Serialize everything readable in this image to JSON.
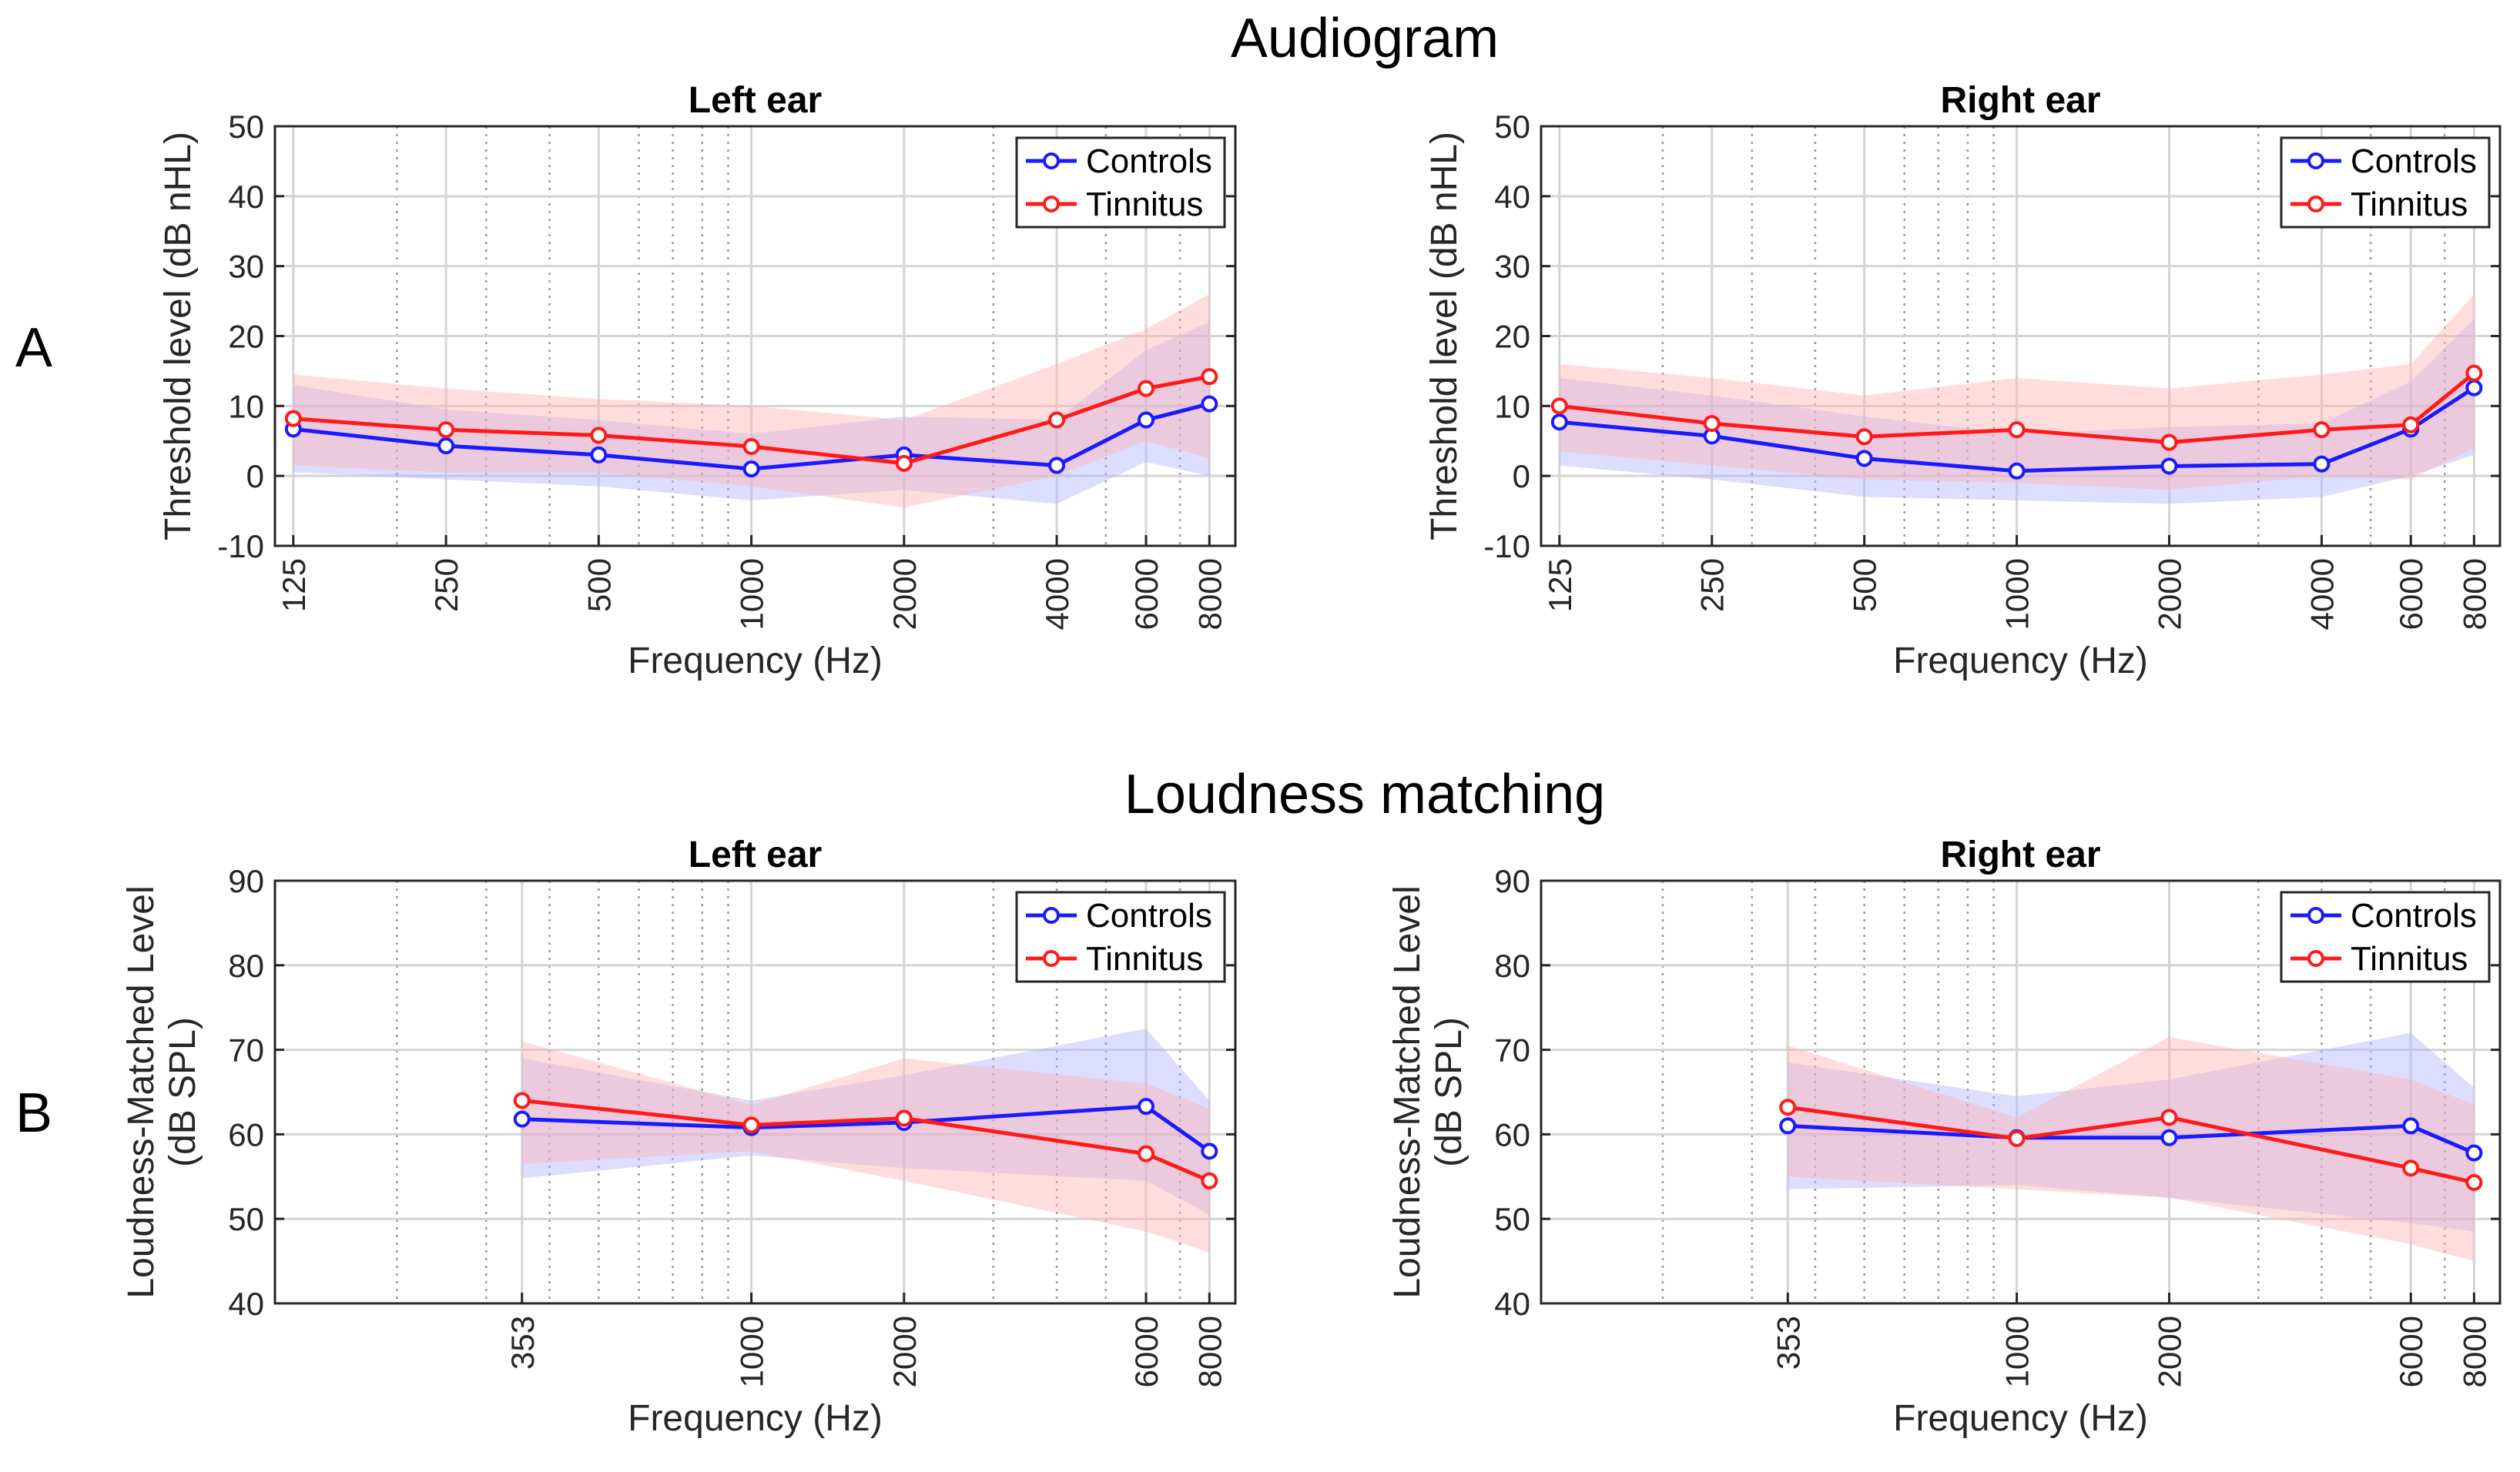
{
  "figure": {
    "row_a": {
      "title": "Audiogram",
      "letter": "A"
    },
    "row_b": {
      "title": "Loudness matching",
      "letter": "B"
    }
  },
  "colors": {
    "controls": "#1a1aff",
    "tinnitus": "#ff1a1a",
    "controls_band": "#b3b3ff",
    "tinnitus_band": "#ffb3b3"
  },
  "chart_data": [
    {
      "id": "audiogram-left",
      "type": "line",
      "title": "Left ear",
      "xlabel": "Frequency (Hz)",
      "ylabel": [
        "Threshold level (dB nHL)"
      ],
      "xscale": "log",
      "xlim": [
        115,
        9000
      ],
      "ylim": [
        -10,
        50
      ],
      "yticks": [
        -10,
        0,
        10,
        20,
        30,
        40,
        50
      ],
      "xticks": [
        125,
        250,
        500,
        1000,
        2000,
        4000,
        6000,
        8000
      ],
      "xtick_labels": [
        "125",
        "250",
        "500",
        "1000",
        "2000",
        "4000",
        "6000",
        "8000"
      ],
      "minor_grid": [
        200,
        300,
        400,
        600,
        700,
        800,
        900,
        3000,
        5000,
        7000
      ],
      "legend": [
        "Controls",
        "Tinnitus"
      ],
      "legend_position": "top-right",
      "series": [
        {
          "name": "Controls",
          "x": [
            125,
            250,
            500,
            1000,
            2000,
            4000,
            6000,
            8000
          ],
          "y": [
            6.7,
            4.3,
            3.0,
            1.0,
            3.0,
            1.5,
            8.0,
            10.3
          ],
          "band_low": [
            0.5,
            -0.5,
            -1.5,
            -3.5,
            -2.0,
            -4.0,
            2.0,
            0.0
          ],
          "band_high": [
            13.0,
            9.5,
            8.0,
            6.0,
            8.5,
            8.0,
            18.0,
            22.0
          ]
        },
        {
          "name": "Tinnitus",
          "x": [
            125,
            250,
            500,
            1000,
            2000,
            4000,
            6000,
            8000
          ],
          "y": [
            8.2,
            6.6,
            5.8,
            4.2,
            1.8,
            8.0,
            12.5,
            14.2
          ],
          "band_low": [
            1.5,
            0.5,
            0.5,
            -1.5,
            -4.5,
            0.0,
            5.0,
            2.5
          ],
          "band_high": [
            14.5,
            12.5,
            11.0,
            10.0,
            8.0,
            16.0,
            21.0,
            26.0
          ]
        }
      ]
    },
    {
      "id": "audiogram-right",
      "type": "line",
      "title": "Right ear",
      "xlabel": "Frequency (Hz)",
      "ylabel": [
        "Threshold level (dB nHL)"
      ],
      "xscale": "log",
      "xlim": [
        115,
        9000
      ],
      "ylim": [
        -10,
        50
      ],
      "yticks": [
        -10,
        0,
        10,
        20,
        30,
        40,
        50
      ],
      "xticks": [
        125,
        250,
        500,
        1000,
        2000,
        4000,
        6000,
        8000
      ],
      "xtick_labels": [
        "125",
        "250",
        "500",
        "1000",
        "2000",
        "4000",
        "6000",
        "8000"
      ],
      "minor_grid": [
        200,
        300,
        400,
        600,
        700,
        800,
        900,
        3000,
        5000,
        7000
      ],
      "legend": [
        "Controls",
        "Tinnitus"
      ],
      "legend_position": "top-right",
      "series": [
        {
          "name": "Controls",
          "x": [
            125,
            250,
            500,
            1000,
            2000,
            4000,
            6000,
            8000
          ],
          "y": [
            7.7,
            5.7,
            2.5,
            0.7,
            1.4,
            1.7,
            6.7,
            12.6
          ],
          "band_low": [
            1.5,
            -0.5,
            -3.0,
            -3.5,
            -4.0,
            -3.0,
            0.0,
            3.0
          ],
          "band_high": [
            14.0,
            11.5,
            8.5,
            6.0,
            7.0,
            7.5,
            13.5,
            22.5
          ]
        },
        {
          "name": "Tinnitus",
          "x": [
            125,
            250,
            500,
            1000,
            2000,
            4000,
            6000,
            8000
          ],
          "y": [
            10.0,
            7.5,
            5.6,
            6.6,
            4.8,
            6.6,
            7.3,
            14.7
          ],
          "band_low": [
            3.5,
            1.5,
            -0.5,
            -1.0,
            -2.0,
            0.0,
            -0.5,
            4.0
          ],
          "band_high": [
            16.0,
            14.0,
            11.5,
            14.0,
            12.5,
            14.5,
            16.0,
            26.0
          ]
        }
      ]
    },
    {
      "id": "loudness-left",
      "type": "line",
      "title": "Left ear",
      "xlabel": "Frequency (Hz)",
      "ylabel": [
        "Loudness-Matched Level",
        "(dB SPL)"
      ],
      "xscale": "log",
      "xlim": [
        115,
        9000
      ],
      "ylim": [
        40,
        90
      ],
      "yticks": [
        40,
        50,
        60,
        70,
        80,
        90
      ],
      "xticks": [
        353,
        1000,
        2000,
        6000,
        8000
      ],
      "xtick_labels": [
        "353",
        "1000",
        "2000",
        "6000",
        "8000"
      ],
      "minor_grid": [
        200,
        300,
        400,
        500,
        600,
        700,
        800,
        900,
        3000,
        4000,
        5000,
        7000
      ],
      "legend": [
        "Controls",
        "Tinnitus"
      ],
      "legend_position": "top-right",
      "series": [
        {
          "name": "Controls",
          "x": [
            353,
            1000,
            2000,
            6000,
            8000
          ],
          "y": [
            61.8,
            60.8,
            61.4,
            63.3,
            58.0
          ],
          "band_low": [
            54.8,
            57.5,
            56.0,
            54.5,
            50.5
          ],
          "band_high": [
            69.0,
            64.0,
            67.0,
            72.5,
            64.0
          ]
        },
        {
          "name": "Tinnitus",
          "x": [
            353,
            1000,
            2000,
            6000,
            8000
          ],
          "y": [
            64.0,
            61.1,
            61.9,
            57.7,
            54.5
          ],
          "band_low": [
            56.5,
            58.0,
            54.5,
            48.5,
            46.0
          ],
          "band_high": [
            71.0,
            63.5,
            69.0,
            66.0,
            63.0
          ]
        }
      ]
    },
    {
      "id": "loudness-right",
      "type": "line",
      "title": "Right ear",
      "xlabel": "Frequency (Hz)",
      "ylabel": [
        "Loudness-Matched Level",
        "(dB SPL)"
      ],
      "xscale": "log",
      "xlim": [
        115,
        9000
      ],
      "ylim": [
        40,
        90
      ],
      "yticks": [
        40,
        50,
        60,
        70,
        80,
        90
      ],
      "xticks": [
        353,
        1000,
        2000,
        6000,
        8000
      ],
      "xtick_labels": [
        "353",
        "1000",
        "2000",
        "6000",
        "8000"
      ],
      "minor_grid": [
        200,
        300,
        400,
        500,
        600,
        700,
        800,
        900,
        3000,
        4000,
        5000,
        7000
      ],
      "legend": [
        "Controls",
        "Tinnitus"
      ],
      "legend_position": "top-right",
      "series": [
        {
          "name": "Controls",
          "x": [
            353,
            1000,
            2000,
            6000,
            8000
          ],
          "y": [
            61.0,
            59.6,
            59.6,
            61.0,
            57.8
          ],
          "band_low": [
            53.5,
            54.0,
            52.5,
            49.5,
            48.5
          ],
          "band_high": [
            68.5,
            64.5,
            66.5,
            72.0,
            65.5
          ]
        },
        {
          "name": "Tinnitus",
          "x": [
            353,
            1000,
            2000,
            6000,
            8000
          ],
          "y": [
            63.2,
            59.5,
            62.0,
            56.0,
            54.3
          ],
          "band_low": [
            55.0,
            53.5,
            52.5,
            47.0,
            45.0
          ],
          "band_high": [
            70.5,
            62.0,
            71.5,
            66.5,
            63.5
          ]
        }
      ]
    }
  ]
}
